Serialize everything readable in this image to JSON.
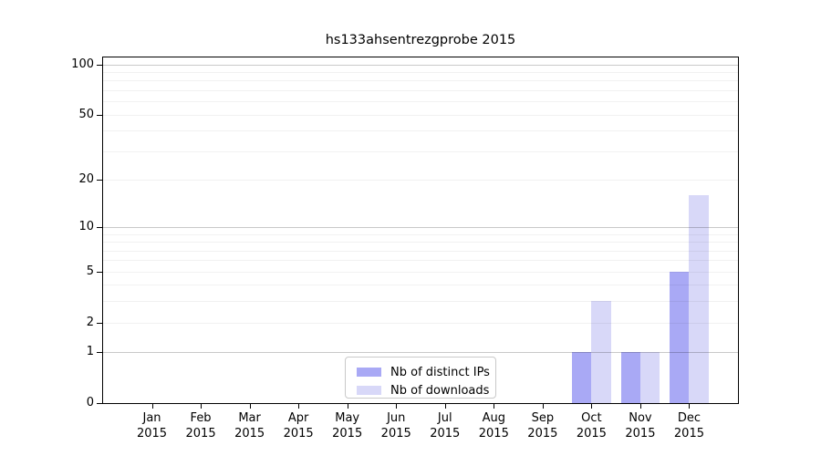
{
  "chart_data": {
    "type": "bar",
    "title": "hs133ahsentrezgprobe 2015",
    "categories": [
      "Jan",
      "Feb",
      "Mar",
      "Apr",
      "May",
      "Jun",
      "Jul",
      "Aug",
      "Sep",
      "Oct",
      "Nov",
      "Dec"
    ],
    "category_year": "2015",
    "series": [
      {
        "name": "Nb of distinct IPs",
        "color": "#a9a9f5",
        "values": [
          0,
          0,
          0,
          0,
          0,
          0,
          0,
          0,
          0,
          1,
          1,
          5
        ]
      },
      {
        "name": "Nb of downloads",
        "color": "#d8d8f8",
        "values": [
          0,
          0,
          0,
          0,
          0,
          0,
          0,
          0,
          0,
          3,
          1,
          16
        ]
      }
    ],
    "yscale": "log10(1+y)",
    "ylim": [
      0,
      110
    ],
    "yticks": [
      0,
      1,
      2,
      5,
      10,
      20,
      50,
      100
    ],
    "major_gridlines": [
      1,
      10,
      100
    ],
    "minor_gridlines": [
      2,
      3,
      4,
      5,
      6,
      7,
      8,
      9,
      20,
      30,
      40,
      50,
      60,
      70,
      80,
      90
    ],
    "grid": true,
    "legend_position": "bottom-center",
    "axis_color": "#000000",
    "background_color": "#ffffff"
  }
}
